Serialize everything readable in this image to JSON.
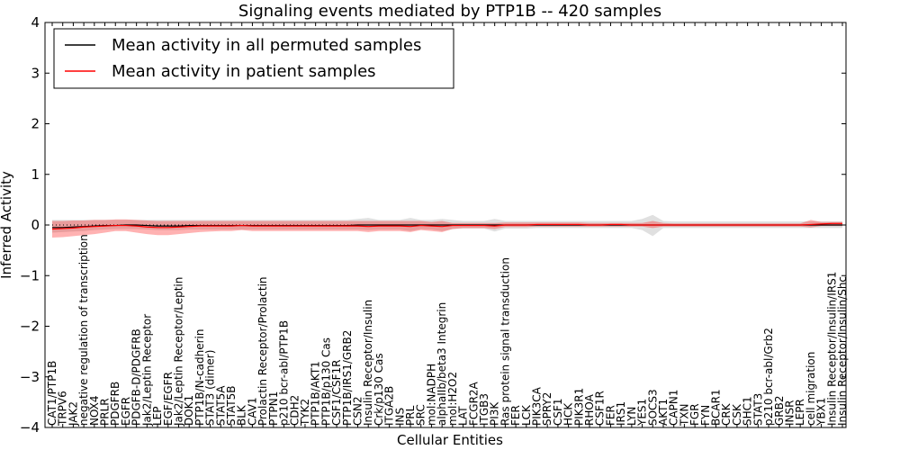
{
  "chart_data": {
    "type": "line",
    "title": "Signaling events mediated by PTP1B -- 420 samples",
    "xlabel": "Cellular Entities",
    "ylabel": "Inferred Activity",
    "ylim": [
      -4,
      4
    ],
    "yticks": [
      "4",
      "3",
      "2",
      "1",
      "0",
      "−1",
      "−2",
      "−3",
      "−4"
    ],
    "legend": {
      "placement": "top-left",
      "entries": [
        {
          "label": "Mean activity in all permuted samples",
          "color": "#000000"
        },
        {
          "label": "Mean activity in patient samples",
          "color": "#ff0000"
        }
      ]
    },
    "categories": [
      "CAT1/PTP1B",
      "TRPV6",
      "JAK2",
      "negative regulation of transcription",
      "NOX4",
      "PRLR",
      "PDGFRB",
      "EGFR",
      "PDGFB-D/PDGFRB",
      "Jak2/Leptin Receptor",
      "LEP",
      "EGF/EGFR",
      "Jak2/Leptin Receptor/Leptin",
      "DOK1",
      "PTP1B/N-cadherin",
      "STAT3 (dimer)",
      "STAT5A",
      "STAT5B",
      "BLK",
      "CAV1",
      "Prolactin Receptor/Prolactin",
      "PTPN1",
      "p210 bcr-abl/PTP1B",
      "CDH2",
      "TYK2",
      "PTP1B/AKT1",
      "PTP1B/p130 Cas",
      "CSF1/CSF1R",
      "PTP1B/IRS1/GRB2",
      "CSN2",
      "Insulin Receptor/Insulin",
      "Crk/p130 Cas",
      "ITGA2B",
      "INS",
      "PRL",
      "SRC",
      "mol:NADPH",
      "alphaIIb/beta3 Integrin",
      "mol:H2O2",
      "LAT",
      "FCGR2A",
      "ITGB3",
      "PI3K",
      "Ras protein signal transduction",
      "FER",
      "LCK",
      "PIK3CA",
      "SPRY2",
      "CSF1",
      "HCK",
      "PIK3R1",
      "RHOA",
      "CSF1R",
      "FER",
      "IRS1",
      "LYN",
      "YES1",
      "SOCS3",
      "AKT1",
      "CAPN1",
      "TXN",
      "FGR",
      "FYN",
      "BCAR1",
      "CRK",
      "CSK",
      "SHC1",
      "STAT3",
      "p210 bcr-abl/Grb2",
      "GRB2",
      "INSR",
      "LEPR",
      "cell migration",
      "YBX1",
      "Insulin Receptor/Insulin/IRS1",
      "Insulin Receptor/Insulin/Shc"
    ],
    "series": [
      {
        "name": "Mean activity in all permuted samples",
        "values": [
          -0.05,
          -0.05,
          -0.04,
          -0.03,
          -0.02,
          -0.01,
          -0.01,
          0,
          0,
          -0.01,
          -0.02,
          -0.02,
          -0.02,
          -0.01,
          -0.01,
          -0.01,
          -0.01,
          -0.01,
          -0.01,
          -0.01,
          -0.01,
          -0.01,
          -0.01,
          -0.01,
          -0.01,
          -0.01,
          -0.01,
          -0.01,
          -0.01,
          0,
          0,
          0,
          0,
          0,
          0,
          0,
          0,
          0,
          0,
          0,
          0,
          0,
          0,
          0,
          0,
          0,
          0,
          0,
          0,
          0,
          0,
          0,
          0,
          0,
          0,
          0,
          0,
          0,
          0,
          0,
          0,
          0,
          0,
          0,
          0,
          0,
          0,
          0,
          0,
          0,
          0,
          0,
          0,
          0,
          0,
          0
        ]
      },
      {
        "name": "Mean activity in patient samples",
        "values": [
          -0.08,
          -0.07,
          -0.06,
          -0.04,
          -0.03,
          -0.02,
          -0.01,
          -0.01,
          -0.02,
          -0.04,
          -0.05,
          -0.05,
          -0.04,
          -0.03,
          -0.02,
          -0.02,
          -0.02,
          -0.02,
          -0.01,
          -0.02,
          -0.02,
          -0.02,
          -0.02,
          -0.02,
          -0.02,
          -0.02,
          -0.02,
          -0.02,
          -0.02,
          -0.02,
          -0.03,
          -0.02,
          -0.02,
          -0.02,
          -0.03,
          -0.01,
          -0.02,
          -0.03,
          -0.01,
          -0.01,
          -0.01,
          -0.01,
          -0.02,
          0,
          0,
          0,
          0.01,
          0.01,
          0.01,
          0.01,
          0.01,
          0,
          0,
          0.01,
          0.01,
          0,
          0,
          0,
          0,
          0,
          0,
          0,
          0,
          0,
          0,
          0,
          0,
          0,
          0,
          0,
          0,
          0,
          0.01,
          0.02,
          0.03,
          0.03
        ]
      }
    ],
    "patient_band": {
      "name": "patient samples spread",
      "color": "#ff0000",
      "lower": [
        -0.25,
        -0.24,
        -0.22,
        -0.2,
        -0.18,
        -0.15,
        -0.12,
        -0.12,
        -0.15,
        -0.18,
        -0.2,
        -0.2,
        -0.18,
        -0.16,
        -0.14,
        -0.13,
        -0.12,
        -0.12,
        -0.1,
        -0.12,
        -0.12,
        -0.12,
        -0.12,
        -0.12,
        -0.12,
        -0.12,
        -0.12,
        -0.12,
        -0.12,
        -0.12,
        -0.14,
        -0.12,
        -0.12,
        -0.12,
        -0.14,
        -0.1,
        -0.12,
        -0.14,
        -0.08,
        -0.06,
        -0.06,
        -0.06,
        -0.08,
        -0.04,
        -0.04,
        -0.04,
        -0.03,
        -0.03,
        -0.03,
        -0.03,
        -0.03,
        -0.03,
        -0.03,
        -0.03,
        -0.03,
        -0.03,
        -0.03,
        -0.06,
        -0.03,
        -0.03,
        -0.03,
        -0.03,
        -0.03,
        -0.03,
        -0.03,
        -0.03,
        -0.03,
        -0.03,
        -0.03,
        -0.03,
        -0.03,
        -0.03,
        -0.05,
        -0.02,
        -0.02,
        -0.02
      ],
      "upper": [
        0.08,
        0.08,
        0.09,
        0.09,
        0.1,
        0.1,
        0.11,
        0.11,
        0.1,
        0.09,
        0.08,
        0.08,
        0.08,
        0.08,
        0.08,
        0.08,
        0.08,
        0.08,
        0.08,
        0.08,
        0.08,
        0.08,
        0.08,
        0.08,
        0.08,
        0.08,
        0.08,
        0.08,
        0.08,
        0.08,
        0.08,
        0.08,
        0.08,
        0.08,
        0.08,
        0.08,
        0.06,
        0.08,
        0.04,
        0.04,
        0.04,
        0.04,
        0.04,
        0.05,
        0.05,
        0.05,
        0.05,
        0.05,
        0.05,
        0.05,
        0.05,
        0.04,
        0.04,
        0.04,
        0.04,
        0.04,
        0.04,
        0.08,
        0.04,
        0.03,
        0.03,
        0.03,
        0.03,
        0.03,
        0.03,
        0.03,
        0.03,
        0.03,
        0.03,
        0.03,
        0.03,
        0.03,
        0.1,
        0.06,
        0.06,
        0.06
      ]
    },
    "permuted_band": {
      "name": "permuted samples spread",
      "color": "#999999",
      "lower": [
        -0.15,
        -0.14,
        -0.13,
        -0.12,
        -0.1,
        -0.09,
        -0.08,
        -0.08,
        -0.08,
        -0.09,
        -0.1,
        -0.1,
        -0.1,
        -0.09,
        -0.09,
        -0.09,
        -0.09,
        -0.09,
        -0.09,
        -0.09,
        -0.09,
        -0.09,
        -0.09,
        -0.09,
        -0.09,
        -0.09,
        -0.09,
        -0.09,
        -0.09,
        -0.09,
        -0.1,
        -0.09,
        -0.09,
        -0.09,
        -0.12,
        -0.08,
        -0.09,
        -0.12,
        -0.08,
        -0.07,
        -0.07,
        -0.07,
        -0.13,
        -0.07,
        -0.07,
        -0.07,
        -0.06,
        -0.06,
        -0.06,
        -0.06,
        -0.06,
        -0.06,
        -0.06,
        -0.06,
        -0.06,
        -0.06,
        -0.1,
        -0.22,
        -0.06,
        -0.06,
        -0.06,
        -0.06,
        -0.06,
        -0.06,
        -0.06,
        -0.06,
        -0.06,
        -0.06,
        -0.06,
        -0.06,
        -0.06,
        -0.06,
        -0.06,
        -0.06,
        -0.06,
        -0.06
      ],
      "upper": [
        0.1,
        0.1,
        0.1,
        0.1,
        0.1,
        0.1,
        0.1,
        0.1,
        0.1,
        0.1,
        0.1,
        0.1,
        0.1,
        0.1,
        0.1,
        0.1,
        0.1,
        0.1,
        0.1,
        0.1,
        0.1,
        0.1,
        0.1,
        0.1,
        0.1,
        0.1,
        0.1,
        0.1,
        0.1,
        0.12,
        0.14,
        0.1,
        0.1,
        0.1,
        0.14,
        0.1,
        0.1,
        0.12,
        0.1,
        0.08,
        0.08,
        0.08,
        0.12,
        0.08,
        0.08,
        0.08,
        0.08,
        0.08,
        0.08,
        0.08,
        0.08,
        0.08,
        0.08,
        0.08,
        0.08,
        0.08,
        0.12,
        0.2,
        0.08,
        0.07,
        0.07,
        0.07,
        0.07,
        0.07,
        0.07,
        0.07,
        0.07,
        0.07,
        0.07,
        0.07,
        0.07,
        0.07,
        0.07,
        0.07,
        0.07,
        0.07
      ]
    }
  }
}
